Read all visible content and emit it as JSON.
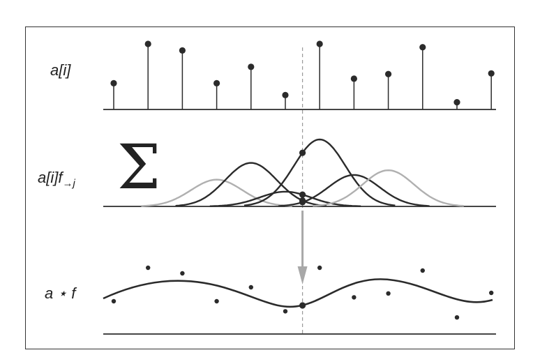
{
  "diagram": {
    "labels": {
      "signal": "a[i]",
      "weighted_prefix": "a[i]f",
      "weighted_sub": "→j",
      "convolution": "a ⋆ f",
      "sum_symbol": "Σ"
    },
    "samples": [
      0.4,
      1.0,
      0.9,
      0.4,
      0.65,
      0.22,
      1.0,
      0.47,
      0.54,
      0.95,
      0.11,
      0.55
    ],
    "marked_sample_index": 5.5,
    "colors": {
      "ink": "#2b2b2b",
      "light_gaussian": "#b0b0b0",
      "arrow": "#a8a8a8",
      "dashed_line": "#9a9a9a"
    }
  }
}
